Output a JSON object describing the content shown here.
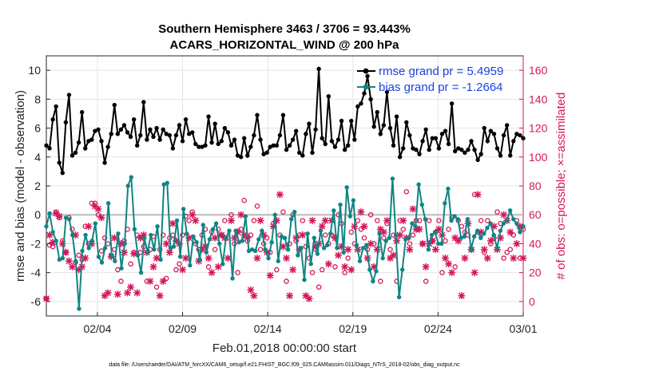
{
  "chart_data": {
    "type": "line",
    "title": "Southern Hemisphere 3463 / 3706 = 93.443%",
    "subtitle": "ACARS_HORIZONTAL_WIND @ 200 hPa",
    "xlabel": "Feb.01,2018 00:00:00 start",
    "ylabel": "rmse and bias (model - observation)",
    "y2label": "# of obs: o=possible; ×=assimilated",
    "footnote": "data file: /Users/raeder/DAI/ATM_forcXX/CAM6_setup/f.e21.FHIST_BGC.f09_025.CAM6assim.011/Diags_NTrS_2018-02/obs_diag_output.nc",
    "xlim": [
      1,
      57
    ],
    "x_ticks": [
      {
        "x": 7,
        "label": "02/04"
      },
      {
        "x": 17,
        "label": "02/09"
      },
      {
        "x": 27,
        "label": "02/14"
      },
      {
        "x": 37,
        "label": "02/19"
      },
      {
        "x": 47,
        "label": "02/24"
      },
      {
        "x": 57,
        "label": "03/01"
      }
    ],
    "ylim": [
      -7,
      11
    ],
    "y_ticks": [
      -6,
      -4,
      -2,
      0,
      2,
      4,
      6,
      8,
      10
    ],
    "y2lim": [
      -10,
      170
    ],
    "y2_ticks": [
      0,
      20,
      40,
      60,
      80,
      100,
      120,
      140,
      160
    ],
    "grid": true,
    "legend_position": "top-right",
    "colors": {
      "rmse": "#000000",
      "bias": "#0f8584",
      "obs": "#d6165a",
      "zero_line": "#bbbbbb",
      "legend_text": "#1844e0"
    },
    "series": [
      {
        "name": "rmse grand pr = 5.4959",
        "axis": "left",
        "values": [
          4.8,
          4.6,
          6.6,
          7.5,
          3.6,
          2.9,
          6.4,
          8.3,
          4.1,
          4.3,
          5.0,
          7.1,
          4.6,
          5.1,
          5.2,
          5.8,
          5.9,
          5.1,
          3.6,
          4.7,
          5.6,
          7.6,
          5.6,
          5.9,
          6.2,
          5.7,
          5.4,
          6.6,
          4.8,
          5.5,
          7.8,
          5.2,
          5.9,
          5.4,
          6.0,
          5.2,
          5.9,
          5.6,
          5.5,
          4.6,
          5.5,
          6.2,
          5.1,
          6.6,
          5.6,
          5.7,
          4.9,
          4.7,
          4.7,
          4.8,
          6.8,
          5.0,
          6.3,
          4.9,
          5.1,
          6.0,
          5.7,
          4.8,
          5.2,
          4.1,
          4.0,
          5.3,
          4.1,
          4.7,
          5.5,
          6.9,
          5.2,
          4.2,
          4.3,
          4.7,
          4.8,
          4.8,
          5.5,
          6.9,
          4.5,
          4.8,
          5.2,
          5.8,
          4.3,
          4.1,
          5.6,
          6.3,
          4.3,
          5.9,
          10.1,
          5.3,
          4.9,
          8.2,
          5.1,
          4.7,
          5.2,
          6.5,
          4.5,
          4.8,
          6.5,
          5.2,
          7.5,
          7.7,
          8.4,
          9.6,
          8.0,
          6.1,
          7.1,
          5.6,
          6.2,
          8.5,
          6.0,
          4.8,
          6.8,
          4.0,
          4.6,
          6.4,
          5.5,
          4.6,
          4.5,
          4.2,
          5.1,
          5.9,
          4.5,
          5.3,
          5.3,
          4.6,
          5.6,
          5.8,
          4.9,
          7.7,
          4.4,
          4.6,
          4.5,
          4.3,
          4.5,
          5.1,
          4.5,
          3.8,
          4.2,
          6.0,
          5.1,
          5.8,
          5.6,
          4.6,
          4.1,
          5.5,
          6.2,
          4.1,
          5.1,
          5.6,
          5.5,
          5.3
        ]
      },
      {
        "name": "bias grand pr = -1.2664",
        "axis": "left",
        "values": [
          -0.8,
          0.1,
          -1.2,
          -1.8,
          -3.1,
          -3.0,
          -0.2,
          -0.3,
          -1.4,
          -3.2,
          -6.5,
          -2.5,
          -1.4,
          -2.3,
          -1.8,
          -0.6,
          -2.9,
          -3.3,
          -2.3,
          0.8,
          -2.8,
          -3.2,
          -1.3,
          -3.7,
          -2.0,
          2.0,
          2.6,
          -1.0,
          -2.8,
          -4.0,
          -1.6,
          -2.6,
          -1.4,
          -2.4,
          -0.8,
          -3.1,
          2.1,
          2.2,
          -2.3,
          -2.2,
          -0.4,
          -2.9,
          0.4,
          -1.3,
          -3.5,
          -1.5,
          -1.9,
          -3.1,
          -0.7,
          -2.6,
          -1.7,
          -1.0,
          -0.6,
          -2.0,
          -3.4,
          -1.6,
          -1.1,
          -4.4,
          -1.1,
          -1.9,
          -1.8,
          -0.1,
          -2.5,
          -2.4,
          -2.5,
          -1.7,
          -1.1,
          -2.4,
          -3.0,
          -1.9,
          0.0,
          -3.2,
          -1.5,
          -1.6,
          -2.4,
          -0.3,
          0.2,
          -2.8,
          -2.3,
          -4.5,
          -1.3,
          -3.4,
          -1.6,
          -2.7,
          -1.1,
          -2.3,
          -2.1,
          -1.3,
          0.3,
          -2.3,
          0.7,
          -2.6,
          1.9,
          -0.1,
          1.0,
          -2.1,
          -3.2,
          -2.3,
          -2.1,
          -3.8,
          -4.6,
          -3.9,
          -1.3,
          -3.0,
          -1.8,
          -1.6,
          2.5,
          -1.4,
          -5.7,
          -3.8,
          -1.7,
          -1.6,
          -0.6,
          -0.8,
          2.1,
          0.7,
          -0.3,
          -2.4,
          -1.4,
          -1.2,
          -2.0,
          -2.0,
          0.8,
          1.8,
          -0.4,
          -0.1,
          -0.3,
          -1.6,
          -1.5,
          -0.3,
          -2.4,
          -1.5,
          -1.1,
          -1.6,
          -1.3,
          -0.9,
          -0.6,
          -1.4,
          -2.3,
          -1.1,
          -0.6,
          -0.4,
          0.3,
          -0.3,
          -0.6,
          -1.2,
          -0.8
        ]
      },
      {
        "name": "obs possible",
        "axis": "right",
        "marker": "o",
        "values": [
          2,
          39,
          38,
          62,
          58,
          42,
          34,
          58,
          50,
          27,
          32,
          29,
          52,
          40,
          68,
          68,
          60,
          35,
          44,
          40,
          32,
          36,
          22,
          14,
          42,
          50,
          26,
          34,
          46,
          34,
          38,
          14,
          36,
          45,
          10,
          36,
          46,
          16,
          44,
          46,
          22,
          26,
          46,
          59,
          56,
          62,
          40,
          36,
          46,
          50,
          24,
          48,
          36,
          50,
          46,
          56,
          44,
          60,
          40,
          20,
          50,
          70,
          42,
          46,
          56,
          66,
          36,
          40,
          44,
          34,
          54,
          22,
          46,
          62,
          14,
          40,
          60,
          42,
          46,
          56,
          38,
          30,
          20,
          36,
          10,
          22,
          46,
          40,
          46,
          24,
          60,
          54,
          20,
          30,
          48,
          40,
          56,
          50,
          44,
          36,
          60,
          40,
          56,
          14,
          44,
          54,
          36,
          46,
          14,
          56,
          50,
          76,
          40,
          46,
          56,
          56,
          40,
          14,
          56,
          42,
          48,
          56,
          20,
          42,
          50,
          58,
          24,
          56,
          52,
          48,
          46,
          36,
          74,
          48,
          56,
          34,
          56,
          40,
          44,
          62,
          54,
          30,
          34,
          36,
          46,
          56,
          30,
          50
        ]
      },
      {
        "name": "obs assimilated",
        "axis": "right",
        "marker": "x",
        "values": [
          2,
          46,
          41,
          61,
          59,
          40,
          34,
          28,
          24,
          46,
          22,
          24,
          30,
          52,
          40,
          66,
          64,
          58,
          4,
          6,
          31,
          44,
          5,
          40,
          34,
          6,
          10,
          33,
          6,
          44,
          46,
          34,
          14,
          24,
          30,
          4,
          14,
          40,
          34,
          54,
          42,
          40,
          22,
          30,
          44,
          60,
          56,
          28,
          36,
          38,
          30,
          20,
          44,
          24,
          46,
          44,
          30,
          56,
          44,
          48,
          60,
          46,
          44,
          8,
          4,
          30,
          56,
          46,
          34,
          18,
          52,
          56,
          74,
          38,
          30,
          4,
          22,
          44,
          36,
          46,
          4,
          2,
          56,
          38,
          40,
          52,
          56,
          26,
          56,
          44,
          32,
          38,
          24,
          36,
          22,
          52,
          36,
          62,
          52,
          30,
          40,
          24,
          36,
          50,
          48,
          56,
          30,
          32,
          42,
          46,
          56,
          44,
          36,
          64,
          50,
          50,
          40,
          24,
          40,
          42,
          36,
          50,
          46,
          30,
          26,
          20,
          44,
          42,
          4,
          30,
          54,
          36,
          20,
          74,
          48,
          36,
          30,
          42,
          52,
          36,
          44,
          60,
          56,
          48,
          30,
          40,
          52,
          30
        ]
      }
    ]
  }
}
